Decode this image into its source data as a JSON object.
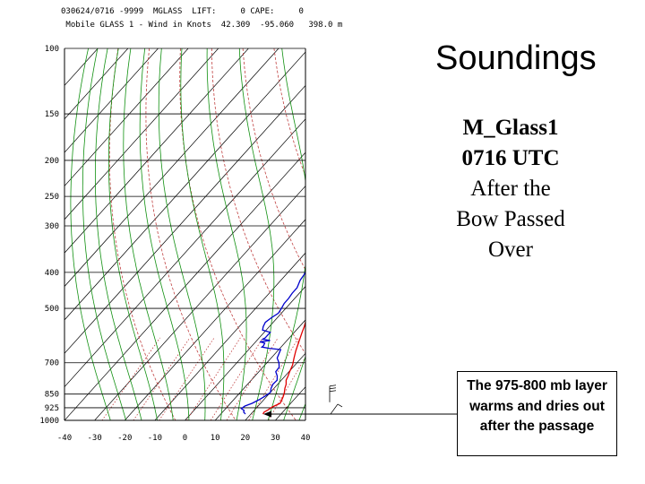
{
  "header": {
    "line1": "030624/0716 -9999  MGLASS  LIFT:     0 CAPE:     0",
    "line2": " Mobile GLASS 1 - Wind in Knots  42.309  -95.060   398.0 m"
  },
  "slide": {
    "title": "Soundings",
    "subtitle_lines": [
      "M_Glass1",
      "0716 UTC",
      "After the",
      "Bow Passed",
      "Over"
    ]
  },
  "callout": {
    "text": "The 975-800 mb layer warms and dries out after the passage"
  },
  "colors": {
    "temperature": "#e00000",
    "dewpoint": "#0000cc",
    "isotherm": "#000000",
    "dry_adiabat": "#c04040",
    "moist_adiabat": "#109010",
    "mixing_ratio": "#c04040",
    "isobar": "#000000"
  },
  "chart_data": {
    "type": "line",
    "chart_kind": "skew-T log-P diagram",
    "xlim": [
      -40,
      40
    ],
    "ylim": [
      1000,
      100
    ],
    "y_scale": "log",
    "x_ticks": [
      "-40",
      "-30",
      "-20",
      "-10",
      "0",
      "10",
      "20",
      "30",
      "40"
    ],
    "y_ticks": [
      "100",
      "150",
      "200",
      "250",
      "300",
      "400",
      "500",
      "700",
      "850",
      "925",
      "1000"
    ],
    "pressure_levels": [
      100,
      150,
      200,
      250,
      300,
      400,
      500,
      700,
      850,
      925,
      1000
    ],
    "isotherms": [
      -140,
      -130,
      -120,
      -110,
      -100,
      -90,
      -80,
      -70,
      -60,
      -50,
      -40,
      -30,
      -20,
      -10,
      0,
      10,
      20,
      30,
      40
    ],
    "dry_adiabats_thetaK": [
      270,
      290,
      310,
      330,
      350,
      370,
      390,
      410,
      430,
      450,
      470
    ],
    "moist_adiabats_C": [
      -25,
      -20,
      -15,
      -10,
      -5,
      0,
      5,
      10,
      15,
      20,
      25,
      30,
      35
    ],
    "mixing_ratio_lines_gkg": [
      0.4,
      1,
      2,
      4,
      7,
      10,
      16,
      24
    ],
    "series": [
      {
        "role": "temperature",
        "points": [
          [
            962,
            24.0
          ],
          [
            950,
            23.8
          ],
          [
            935,
            24.5
          ],
          [
            920,
            25.0
          ],
          [
            900,
            26.5
          ],
          [
            880,
            26.0
          ],
          [
            860,
            25.4
          ],
          [
            840,
            24.6
          ],
          [
            820,
            23.6
          ],
          [
            800,
            22.8
          ],
          [
            780,
            21.6
          ],
          [
            760,
            21.0
          ],
          [
            740,
            20.2
          ],
          [
            710,
            19.2
          ],
          [
            680,
            17.6
          ],
          [
            650,
            16.0
          ],
          [
            620,
            14.6
          ],
          [
            600,
            13.6
          ],
          [
            580,
            12.6
          ],
          [
            560,
            11.6
          ],
          [
            540,
            10.4
          ],
          [
            520,
            9.4
          ],
          [
            505,
            8.6
          ],
          [
            490,
            7.2
          ],
          [
            470,
            6.6
          ],
          [
            445,
            5.4
          ],
          [
            420,
            4.0
          ],
          [
            400,
            2.8
          ],
          [
            380,
            1.0
          ],
          [
            360,
            -1.0
          ],
          [
            340,
            -3.0
          ],
          [
            320,
            -5.4
          ],
          [
            300,
            -8.4
          ],
          [
            280,
            -11.2
          ],
          [
            260,
            -14.6
          ],
          [
            248,
            -16.8
          ],
          [
            244,
            -20.0
          ],
          [
            242,
            -24.0
          ],
          [
            240,
            -20.0
          ],
          [
            235,
            -20.6
          ],
          [
            228,
            -22.0
          ],
          [
            220,
            -23.8
          ],
          [
            212,
            -25.2
          ],
          [
            200,
            -27.4
          ],
          [
            190,
            -29.4
          ]
        ]
      },
      {
        "role": "dewpoint",
        "points": [
          [
            962,
            18.2
          ],
          [
            950,
            17.0
          ],
          [
            940,
            16.6
          ],
          [
            930,
            15.2
          ],
          [
            915,
            15.6
          ],
          [
            900,
            17.2
          ],
          [
            880,
            18.4
          ],
          [
            860,
            19.4
          ],
          [
            840,
            20.0
          ],
          [
            820,
            19.0
          ],
          [
            800,
            18.4
          ],
          [
            780,
            18.6
          ],
          [
            760,
            17.4
          ],
          [
            740,
            15.6
          ],
          [
            720,
            15.4
          ],
          [
            700,
            14.0
          ],
          [
            680,
            12.0
          ],
          [
            660,
            11.2
          ],
          [
            645,
            10.6
          ],
          [
            640,
            6.4
          ],
          [
            635,
            3.6
          ],
          [
            630,
            3.8
          ],
          [
            620,
            3.4
          ],
          [
            615,
            1.4
          ],
          [
            610,
            4.4
          ],
          [
            605,
            1.6
          ],
          [
            600,
            2.0
          ],
          [
            580,
            2.0
          ],
          [
            572,
            -1.2
          ],
          [
            560,
            -2.0
          ],
          [
            545,
            -2.6
          ],
          [
            530,
            -2.0
          ],
          [
            515,
            -1.0
          ],
          [
            500,
            -1.4
          ],
          [
            485,
            -2.0
          ],
          [
            470,
            -2.0
          ],
          [
            455,
            -2.4
          ],
          [
            440,
            -2.4
          ],
          [
            420,
            -3.6
          ],
          [
            405,
            -4.0
          ],
          [
            390,
            -4.8
          ],
          [
            370,
            -6.2
          ],
          [
            350,
            -7.6
          ],
          [
            330,
            -9.6
          ],
          [
            310,
            -11.6
          ],
          [
            290,
            -14.4
          ],
          [
            275,
            -16.0
          ],
          [
            260,
            -17.8
          ],
          [
            250,
            -19.2
          ],
          [
            246,
            -22.0
          ],
          [
            244,
            -25.6
          ],
          [
            241,
            -22.0
          ],
          [
            238,
            -21.6
          ],
          [
            232,
            -23.4
          ],
          [
            228,
            -23.0
          ],
          [
            220,
            -25.0
          ],
          [
            215,
            -26.4
          ],
          [
            210,
            -25.8
          ],
          [
            205,
            -25.8
          ],
          [
            200,
            -27.0
          ],
          [
            190,
            -28.0
          ],
          [
            180,
            -29.8
          ]
        ]
      }
    ],
    "wind_barbs": [
      {
        "pressure": 850,
        "direction": "N"
      },
      {
        "pressure": 925,
        "direction": "SW"
      }
    ]
  }
}
